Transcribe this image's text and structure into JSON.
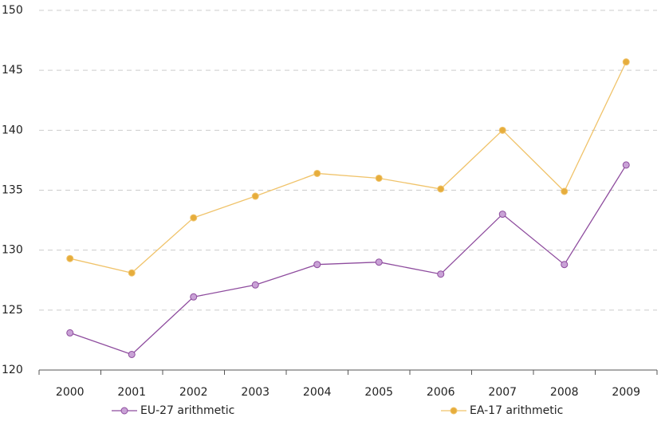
{
  "chart_data": {
    "type": "line",
    "categories": [
      "2000",
      "2001",
      "2002",
      "2003",
      "2004",
      "2005",
      "2006",
      "2007",
      "2008",
      "2009"
    ],
    "series": [
      {
        "name": "EU-27 arithmetic",
        "color": "#8e4c9e",
        "marker_color": "#c9a2d6",
        "values": [
          123.1,
          121.3,
          126.1,
          127.1,
          128.8,
          129.0,
          128.0,
          133.0,
          128.8,
          137.1
        ]
      },
      {
        "name": "EA-17 arithmetic",
        "color": "#f0c36a",
        "marker_color": "#e6ad3c",
        "values": [
          129.3,
          128.1,
          132.7,
          134.5,
          136.4,
          136.0,
          135.1,
          140.0,
          134.9,
          145.7
        ]
      }
    ],
    "ylim": [
      120,
      150
    ],
    "yticks": [
      120,
      125,
      130,
      135,
      140,
      145,
      150
    ],
    "grid": true,
    "legend": "bottom"
  }
}
